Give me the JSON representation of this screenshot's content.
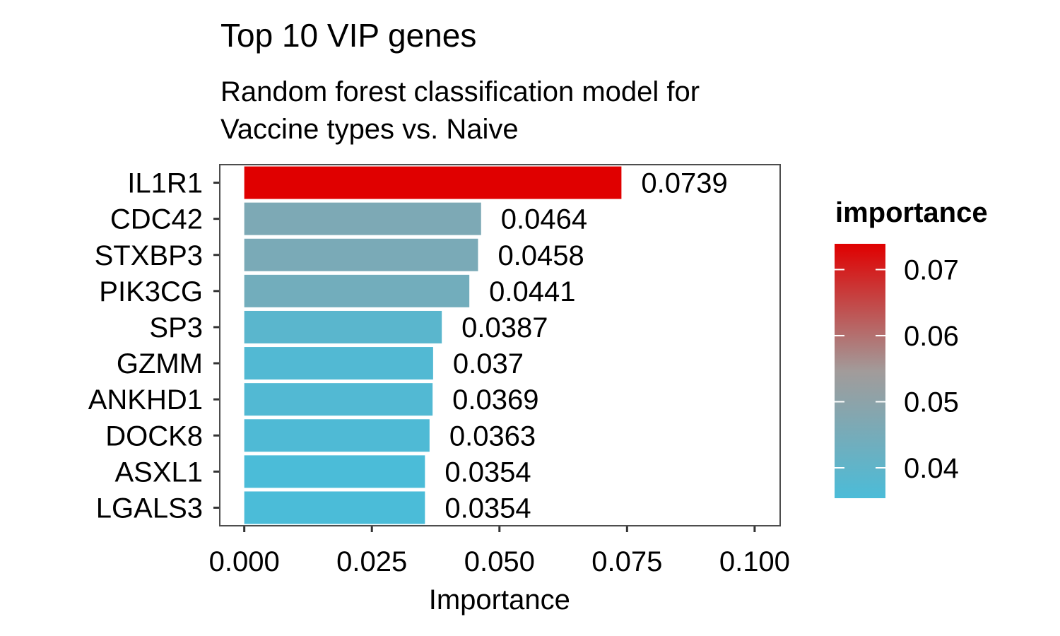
{
  "chart_data": {
    "type": "bar",
    "orientation": "horizontal",
    "title": "Top 10 VIP genes",
    "subtitle_lines": [
      "Random forest classification model for",
      "Vaccine types vs. Naive"
    ],
    "categories": [
      "IL1R1",
      "CDC42",
      "STXBP3",
      "PIK3CG",
      "SP3",
      "GZMM",
      "ANKHD1",
      "DOCK8",
      "ASXL1",
      "LGALS3"
    ],
    "values": [
      0.0739,
      0.0464,
      0.0458,
      0.0441,
      0.0387,
      0.037,
      0.0369,
      0.0363,
      0.0354,
      0.0354
    ],
    "value_labels": [
      "0.0739",
      "0.0464",
      "0.0458",
      "0.0441",
      "0.0387",
      "0.037",
      "0.0369",
      "0.0363",
      "0.0354",
      "0.0354"
    ],
    "xlabel": "Importance",
    "ylabel": "",
    "xlim": [
      -0.0048,
      0.105
    ],
    "xticks": [
      0,
      0.025,
      0.05,
      0.075,
      0.1
    ],
    "xtick_labels": [
      "0.000",
      "0.025",
      "0.050",
      "0.075",
      "0.100"
    ],
    "grid": false,
    "legend": {
      "title": "importance",
      "placement": "right",
      "range": [
        0.0354,
        0.0739
      ],
      "ticks": [
        0.04,
        0.05,
        0.06,
        0.07
      ],
      "tick_labels": [
        "0.04",
        "0.05",
        "0.06",
        "0.07"
      ],
      "color_low": "#4BBCD8",
      "color_mid": "#A29B9A",
      "color_high": "#E00000"
    }
  }
}
